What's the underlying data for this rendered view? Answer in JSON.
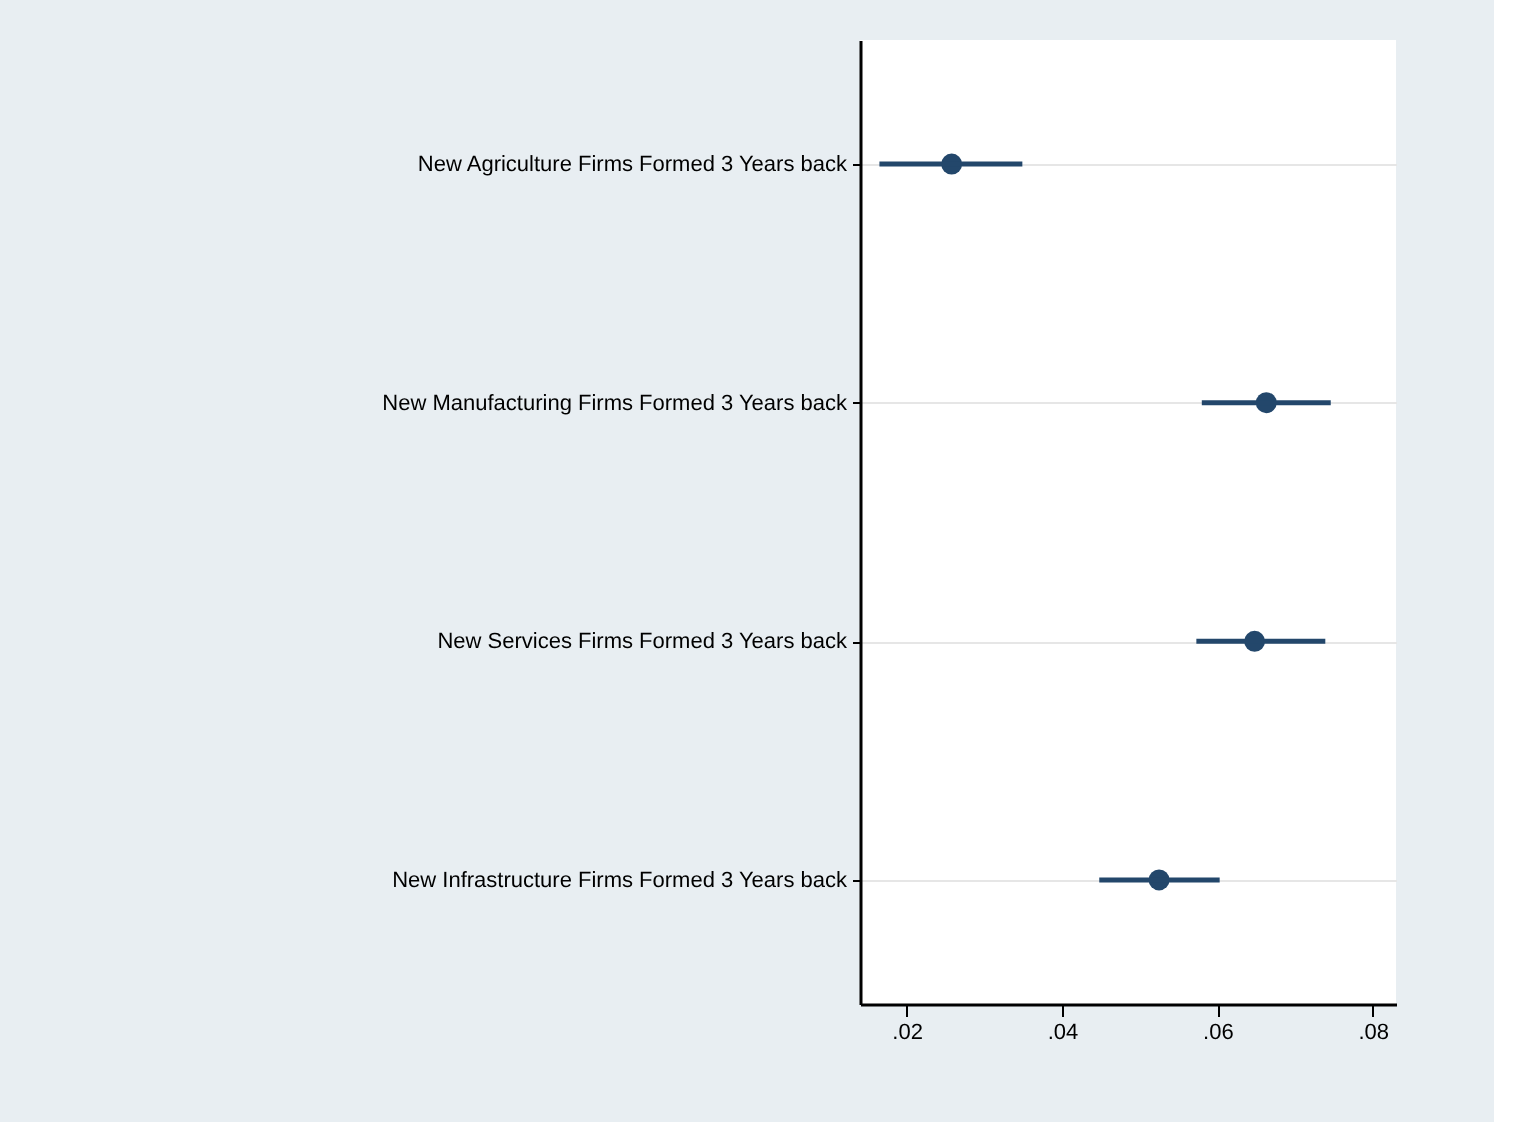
{
  "chart_data": {
    "type": "scatter",
    "orientation": "horizontal",
    "categories": [
      "New Agriculture Firms Formed 3 Years back",
      "New Manufacturing Firms Formed 3 Years back",
      "New Services Firms Formed 3 Years back",
      "New Infrastructure Firms Formed 3 Years back"
    ],
    "series": [
      {
        "color": "#23476b",
        "values": [
          0.0258,
          0.0663,
          0.0648,
          0.0525
        ],
        "errors": [
          [
            0.0165,
            0.0349
          ],
          [
            0.058,
            0.0746
          ],
          [
            0.0573,
            0.0739
          ],
          [
            0.0448,
            0.0603
          ]
        ]
      }
    ],
    "xlim": [
      0.014,
      0.083
    ],
    "xticks": [
      {
        "value": 0.02,
        "label": ".02"
      },
      {
        "value": 0.04,
        "label": ".04"
      },
      {
        "value": 0.06,
        "label": ".06"
      },
      {
        "value": 0.08,
        "label": ".08"
      }
    ],
    "grid": "y",
    "marker": "circle"
  }
}
